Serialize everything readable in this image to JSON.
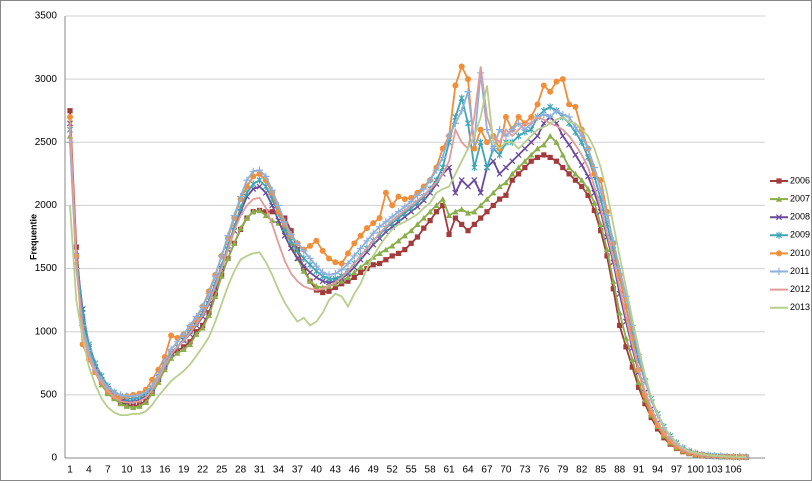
{
  "chart_data": {
    "type": "line",
    "y_label": "Frequentie",
    "categories": [
      1,
      null,
      null,
      4,
      null,
      null,
      7,
      null,
      null,
      10,
      null,
      null,
      13,
      null,
      null,
      16,
      null,
      null,
      19,
      null,
      null,
      22,
      null,
      null,
      25,
      null,
      null,
      28,
      null,
      null,
      31,
      null,
      null,
      34,
      null,
      null,
      37,
      null,
      null,
      40,
      null,
      null,
      43,
      null,
      null,
      46,
      null,
      null,
      49,
      null,
      null,
      52,
      null,
      null,
      55,
      null,
      null,
      58,
      null,
      null,
      61,
      null,
      null,
      64,
      null,
      null,
      67,
      null,
      null,
      70,
      null,
      null,
      73,
      null,
      null,
      76,
      null,
      null,
      79,
      null,
      null,
      82,
      null,
      null,
      85,
      null,
      null,
      88,
      null,
      null,
      91,
      null,
      null,
      94,
      null,
      null,
      97,
      null,
      null,
      100,
      null,
      null,
      103,
      null,
      null,
      106,
      null,
      null
    ],
    "ylim": [
      0,
      3500
    ],
    "yticks": [
      0,
      500,
      1000,
      1500,
      2000,
      2500,
      3000,
      3500
    ],
    "grid": true,
    "legend": "right",
    "series": [
      {
        "name": "2006",
        "color": "#a33a3c",
        "marker": "square",
        "values": [
          2750,
          1670,
          1100,
          850,
          700,
          600,
          520,
          480,
          440,
          420,
          410,
          420,
          450,
          520,
          620,
          720,
          820,
          850,
          880,
          920,
          1000,
          1050,
          1150,
          1300,
          1450,
          1580,
          1700,
          1810,
          1900,
          1950,
          1960,
          1950,
          1950,
          1950,
          1900,
          1800,
          1650,
          1500,
          1400,
          1330,
          1310,
          1320,
          1350,
          1380,
          1400,
          1430,
          1470,
          1500,
          1530,
          1540,
          1570,
          1600,
          1620,
          1650,
          1700,
          1750,
          1820,
          1880,
          1950,
          2000,
          1770,
          1900,
          1850,
          1800,
          1850,
          1900,
          1950,
          2000,
          2050,
          2080,
          2200,
          2250,
          2300,
          2350,
          2380,
          2400,
          2380,
          2350,
          2300,
          2250,
          2200,
          2150,
          2080,
          1960,
          1800,
          1600,
          1340,
          1050,
          880,
          720,
          560,
          430,
          320,
          230,
          160,
          110,
          75,
          50,
          35,
          25,
          18,
          14,
          12,
          10,
          9,
          8,
          7,
          7
        ]
      },
      {
        "name": "2007",
        "color": "#8aae4a",
        "marker": "triangle",
        "values": [
          2550,
          1550,
          1050,
          820,
          680,
          580,
          510,
          470,
          430,
          410,
          400,
          410,
          440,
          510,
          600,
          700,
          790,
          830,
          860,
          900,
          980,
          1030,
          1130,
          1280,
          1440,
          1580,
          1700,
          1820,
          1900,
          1950,
          1960,
          1920,
          1880,
          1860,
          1800,
          1700,
          1580,
          1480,
          1400,
          1360,
          1350,
          1360,
          1380,
          1400,
          1430,
          1470,
          1510,
          1550,
          1590,
          1620,
          1650,
          1680,
          1720,
          1760,
          1800,
          1850,
          1900,
          1950,
          2000,
          2050,
          1920,
          1950,
          1970,
          1940,
          1950,
          2000,
          2050,
          2100,
          2150,
          2180,
          2250,
          2300,
          2350,
          2400,
          2450,
          2480,
          2550,
          2500,
          2400,
          2300,
          2250,
          2200,
          2130,
          2020,
          1850,
          1650,
          1400,
          1150,
          950,
          780,
          600,
          460,
          340,
          250,
          175,
          120,
          80,
          55,
          38,
          27,
          20,
          15,
          12,
          10,
          9,
          8,
          7,
          7
        ]
      },
      {
        "name": "2008",
        "color": "#6b4a9c",
        "marker": "x",
        "values": [
          2650,
          1600,
          1180,
          880,
          720,
          620,
          550,
          500,
          470,
          450,
          450,
          460,
          490,
          550,
          640,
          740,
          830,
          880,
          930,
          980,
          1050,
          1120,
          1220,
          1350,
          1500,
          1650,
          1800,
          1950,
          2070,
          2130,
          2150,
          2100,
          2000,
          1880,
          1760,
          1660,
          1580,
          1520,
          1470,
          1430,
          1400,
          1390,
          1400,
          1420,
          1460,
          1510,
          1570,
          1630,
          1690,
          1740,
          1790,
          1830,
          1870,
          1910,
          1950,
          1990,
          2040,
          2100,
          2170,
          2250,
          2300,
          2100,
          2200,
          2150,
          2200,
          2100,
          2300,
          2350,
          2250,
          2300,
          2350,
          2400,
          2450,
          2500,
          2550,
          2650,
          2700,
          2650,
          2550,
          2480,
          2400,
          2320,
          2230,
          2100,
          1950,
          1750,
          1550,
          1300,
          1080,
          870,
          680,
          520,
          390,
          280,
          200,
          140,
          95,
          65,
          45,
          32,
          24,
          18,
          14,
          12,
          10,
          9,
          8,
          8
        ]
      },
      {
        "name": "2009",
        "color": "#3ea5b6",
        "marker": "star",
        "values": [
          2600,
          1600,
          1150,
          900,
          750,
          650,
          570,
          520,
          490,
          470,
          470,
          480,
          510,
          560,
          640,
          730,
          820,
          880,
          940,
          1000,
          1070,
          1150,
          1250,
          1380,
          1520,
          1680,
          1830,
          1980,
          2100,
          2170,
          2200,
          2150,
          2050,
          1940,
          1820,
          1720,
          1640,
          1580,
          1530,
          1480,
          1440,
          1420,
          1420,
          1440,
          1480,
          1540,
          1600,
          1660,
          1720,
          1770,
          1820,
          1860,
          1900,
          1940,
          1980,
          2020,
          2070,
          2130,
          2200,
          2300,
          2500,
          2700,
          2850,
          2650,
          2300,
          2500,
          2300,
          2450,
          2400,
          2500,
          2500,
          2550,
          2580,
          2600,
          2700,
          2750,
          2780,
          2750,
          2700,
          2650,
          2580,
          2500,
          2380,
          2230,
          2050,
          1850,
          1650,
          1430,
          1200,
          980,
          780,
          610,
          470,
          350,
          250,
          175,
          120,
          80,
          55,
          38,
          28,
          22,
          18,
          15,
          12,
          10,
          9,
          8
        ]
      },
      {
        "name": "2010",
        "color": "#f08e3a",
        "marker": "circle",
        "values": [
          2700,
          1600,
          900,
          780,
          680,
          600,
          530,
          490,
          480,
          490,
          500,
          510,
          540,
          620,
          700,
          800,
          970,
          950,
          980,
          1040,
          1100,
          1200,
          1320,
          1450,
          1600,
          1740,
          1900,
          2050,
          2150,
          2230,
          2250,
          2200,
          2100,
          1950,
          1850,
          1760,
          1700,
          1650,
          1680,
          1720,
          1640,
          1580,
          1550,
          1540,
          1620,
          1700,
          1760,
          1820,
          1860,
          1900,
          2100,
          2000,
          2070,
          2050,
          2060,
          2100,
          2150,
          2200,
          2300,
          2450,
          2550,
          2950,
          3100,
          3000,
          2450,
          2600,
          2500,
          2550,
          2450,
          2700,
          2600,
          2700,
          2650,
          2700,
          2800,
          2950,
          2900,
          2980,
          3000,
          2800,
          2780,
          2600,
          2450,
          2250,
          2200,
          1950,
          1700,
          1450,
          1200,
          950,
          700,
          500,
          360,
          260,
          190,
          130,
          90,
          60,
          42,
          30,
          23,
          18,
          14,
          12,
          10,
          9,
          8,
          8
        ]
      },
      {
        "name": "2011",
        "color": "#8eb0dc",
        "marker": "plus",
        "values": [
          2500,
          1500,
          1050,
          850,
          700,
          620,
          560,
          520,
          500,
          490,
          490,
          500,
          520,
          570,
          660,
          760,
          860,
          920,
          980,
          1050,
          1120,
          1200,
          1300,
          1440,
          1600,
          1760,
          1920,
          2070,
          2200,
          2270,
          2280,
          2230,
          2120,
          2000,
          1870,
          1770,
          1700,
          1640,
          1580,
          1520,
          1470,
          1450,
          1460,
          1490,
          1540,
          1600,
          1660,
          1720,
          1780,
          1830,
          1870,
          1910,
          1950,
          1990,
          2030,
          2080,
          2130,
          2200,
          2280,
          2380,
          2550,
          2650,
          2750,
          2900,
          2500,
          3050,
          2600,
          2450,
          2600,
          2550,
          2600,
          2650,
          2600,
          2650,
          2700,
          2720,
          2700,
          2750,
          2720,
          2700,
          2620,
          2550,
          2450,
          2300,
          2120,
          1920,
          1720,
          1500,
          1280,
          1050,
          820,
          620,
          460,
          340,
          240,
          170,
          115,
          78,
          54,
          38,
          28,
          22,
          18,
          15,
          12,
          10,
          9,
          8
        ]
      },
      {
        "name": "2012",
        "color": "#e39a9a",
        "marker": "none",
        "values": [
          2650,
          1550,
          1000,
          800,
          680,
          600,
          530,
          480,
          450,
          440,
          440,
          450,
          480,
          540,
          630,
          730,
          820,
          880,
          930,
          990,
          1060,
          1130,
          1230,
          1360,
          1500,
          1650,
          1800,
          1920,
          2000,
          2050,
          2060,
          1980,
          1850,
          1700,
          1560,
          1460,
          1400,
          1360,
          1340,
          1330,
          1340,
          1360,
          1390,
          1430,
          1480,
          1540,
          1600,
          1660,
          1720,
          1780,
          1830,
          1880,
          1920,
          1960,
          2000,
          2040,
          2080,
          2130,
          2180,
          2250,
          2350,
          2600,
          2500,
          2450,
          2700,
          3100,
          2700,
          2550,
          2500,
          2600,
          2550,
          2600,
          2650,
          2650,
          2700,
          2680,
          2650,
          2630,
          2600,
          2550,
          2480,
          2400,
          2300,
          2150,
          1980,
          1780,
          1580,
          1350,
          1120,
          900,
          700,
          530,
          390,
          280,
          200,
          140,
          95,
          65,
          45,
          32,
          24,
          18,
          14,
          12,
          10,
          9,
          8,
          8
        ]
      },
      {
        "name": "2013",
        "color": "#b6d08c",
        "marker": "none",
        "values": [
          2000,
          1250,
          950,
          720,
          580,
          470,
          400,
          360,
          340,
          340,
          350,
          350,
          370,
          420,
          490,
          550,
          610,
          650,
          690,
          740,
          810,
          880,
          960,
          1080,
          1220,
          1360,
          1480,
          1570,
          1600,
          1620,
          1630,
          1550,
          1450,
          1330,
          1230,
          1150,
          1080,
          1110,
          1050,
          1080,
          1150,
          1250,
          1300,
          1280,
          1200,
          1300,
          1380,
          1500,
          1600,
          1680,
          1750,
          1810,
          1850,
          1870,
          1900,
          1930,
          1980,
          2020,
          2100,
          2130,
          2150,
          2250,
          2350,
          2450,
          2550,
          2700,
          2950,
          2500,
          2450,
          2500,
          2500,
          2450,
          2500,
          2550,
          2600,
          2620,
          2650,
          2680,
          2700,
          2660,
          2650,
          2600,
          2550,
          2450,
          2300,
          2100,
          1850,
          1600,
          1350,
          1100,
          870,
          660,
          480,
          350,
          250,
          175,
          120,
          80,
          55,
          40,
          30,
          23,
          18,
          15,
          12,
          10,
          9,
          8
        ]
      }
    ]
  }
}
